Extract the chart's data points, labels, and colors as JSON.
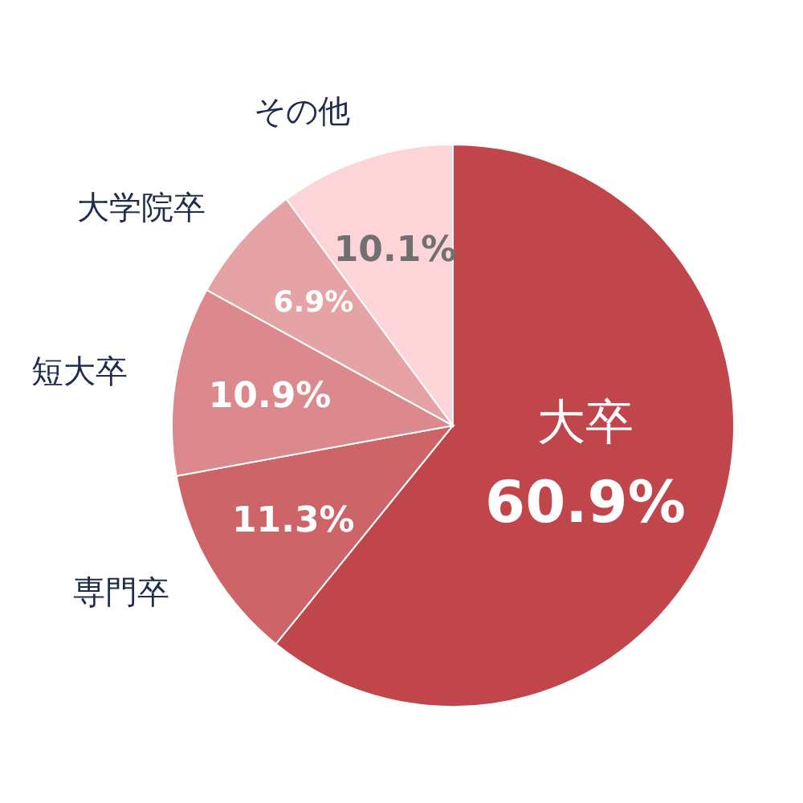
{
  "chart_data": {
    "type": "pie",
    "categories": [
      "大卒",
      "専門卒",
      "短大卒",
      "大学院卒",
      "その他"
    ],
    "values": [
      60.9,
      11.3,
      10.9,
      6.9,
      10.1
    ],
    "colors": [
      "#c0464b",
      "#cd6468",
      "#db898d",
      "#e6a3a5",
      "#fdd5d8"
    ],
    "value_labels": [
      "60.9%",
      "11.3%",
      "10.9%",
      "6.9%",
      "10.1%"
    ]
  }
}
